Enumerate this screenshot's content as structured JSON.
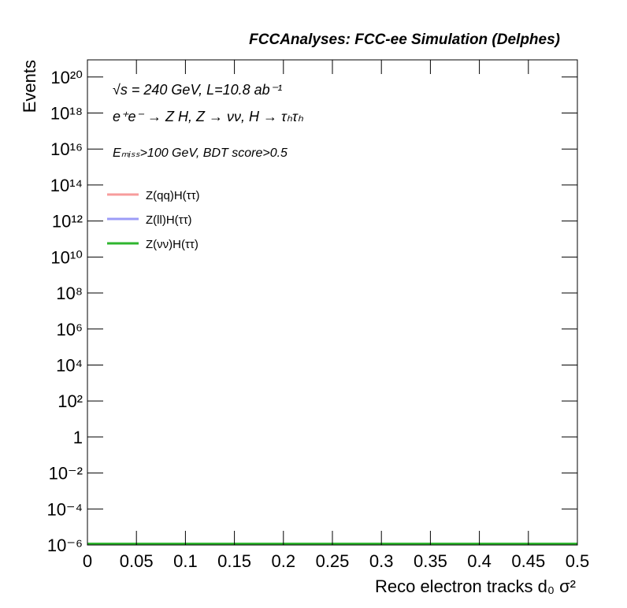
{
  "chart_data": {
    "type": "line",
    "title": "FCCAnalyses: FCC-ee Simulation (Delphes)",
    "annotations": [
      "√s = 240 GeV, L=10.8 ab⁻¹",
      "e⁺e⁻ → Z H, Z → νν, H → τₕτₕ",
      "Eₘᵢₛₛ>100 GeV, BDT score>0.5"
    ],
    "x_label": "Reco electron tracks d₀ σ²",
    "y_label": "Events",
    "x": [
      0,
      0.5
    ],
    "series": [
      {
        "name": "Z(qq)H(ττ)",
        "color": "#f79c9c",
        "values": [
          1e-06,
          1e-06
        ]
      },
      {
        "name": "Z(ll)H(ττ)",
        "color": "#9c9cf7",
        "values": [
          1e-06,
          1e-06
        ]
      },
      {
        "name": "Z(νν)H(ττ)",
        "color": "#2fb52f",
        "values": [
          1e-06,
          1e-06
        ]
      }
    ],
    "xlim": [
      0,
      0.5
    ],
    "xticks": [
      0,
      0.05,
      0.1,
      0.15,
      0.2,
      0.25,
      0.3,
      0.35,
      0.4,
      0.45,
      0.5
    ],
    "ylim": [
      1e-06,
      9e+20
    ],
    "log_y": true,
    "yticks": [
      {
        "value": 1e-06,
        "label": "10⁻⁶"
      },
      {
        "value": 0.0001,
        "label": "10⁻⁴"
      },
      {
        "value": 0.01,
        "label": "10⁻²"
      },
      1,
      {
        "value": 100,
        "label": "10²"
      },
      {
        "value": 10000,
        "label": "10⁴"
      },
      {
        "value": 1000000.0,
        "label": "10⁶"
      },
      {
        "value": 100000000.0,
        "label": "10⁸"
      },
      {
        "value": 10000000000.0,
        "label": "10¹⁰"
      },
      {
        "value": 1000000000000.0,
        "label": "10¹²"
      },
      {
        "value": 100000000000000.0,
        "label": "10¹⁴"
      },
      {
        "value": 1e+16,
        "label": "10¹⁶"
      },
      {
        "value": 1e+18,
        "label": "10¹⁸"
      },
      {
        "value": 1e+20,
        "label": "10²⁰"
      }
    ],
    "grid": false,
    "legend": "upper left"
  }
}
